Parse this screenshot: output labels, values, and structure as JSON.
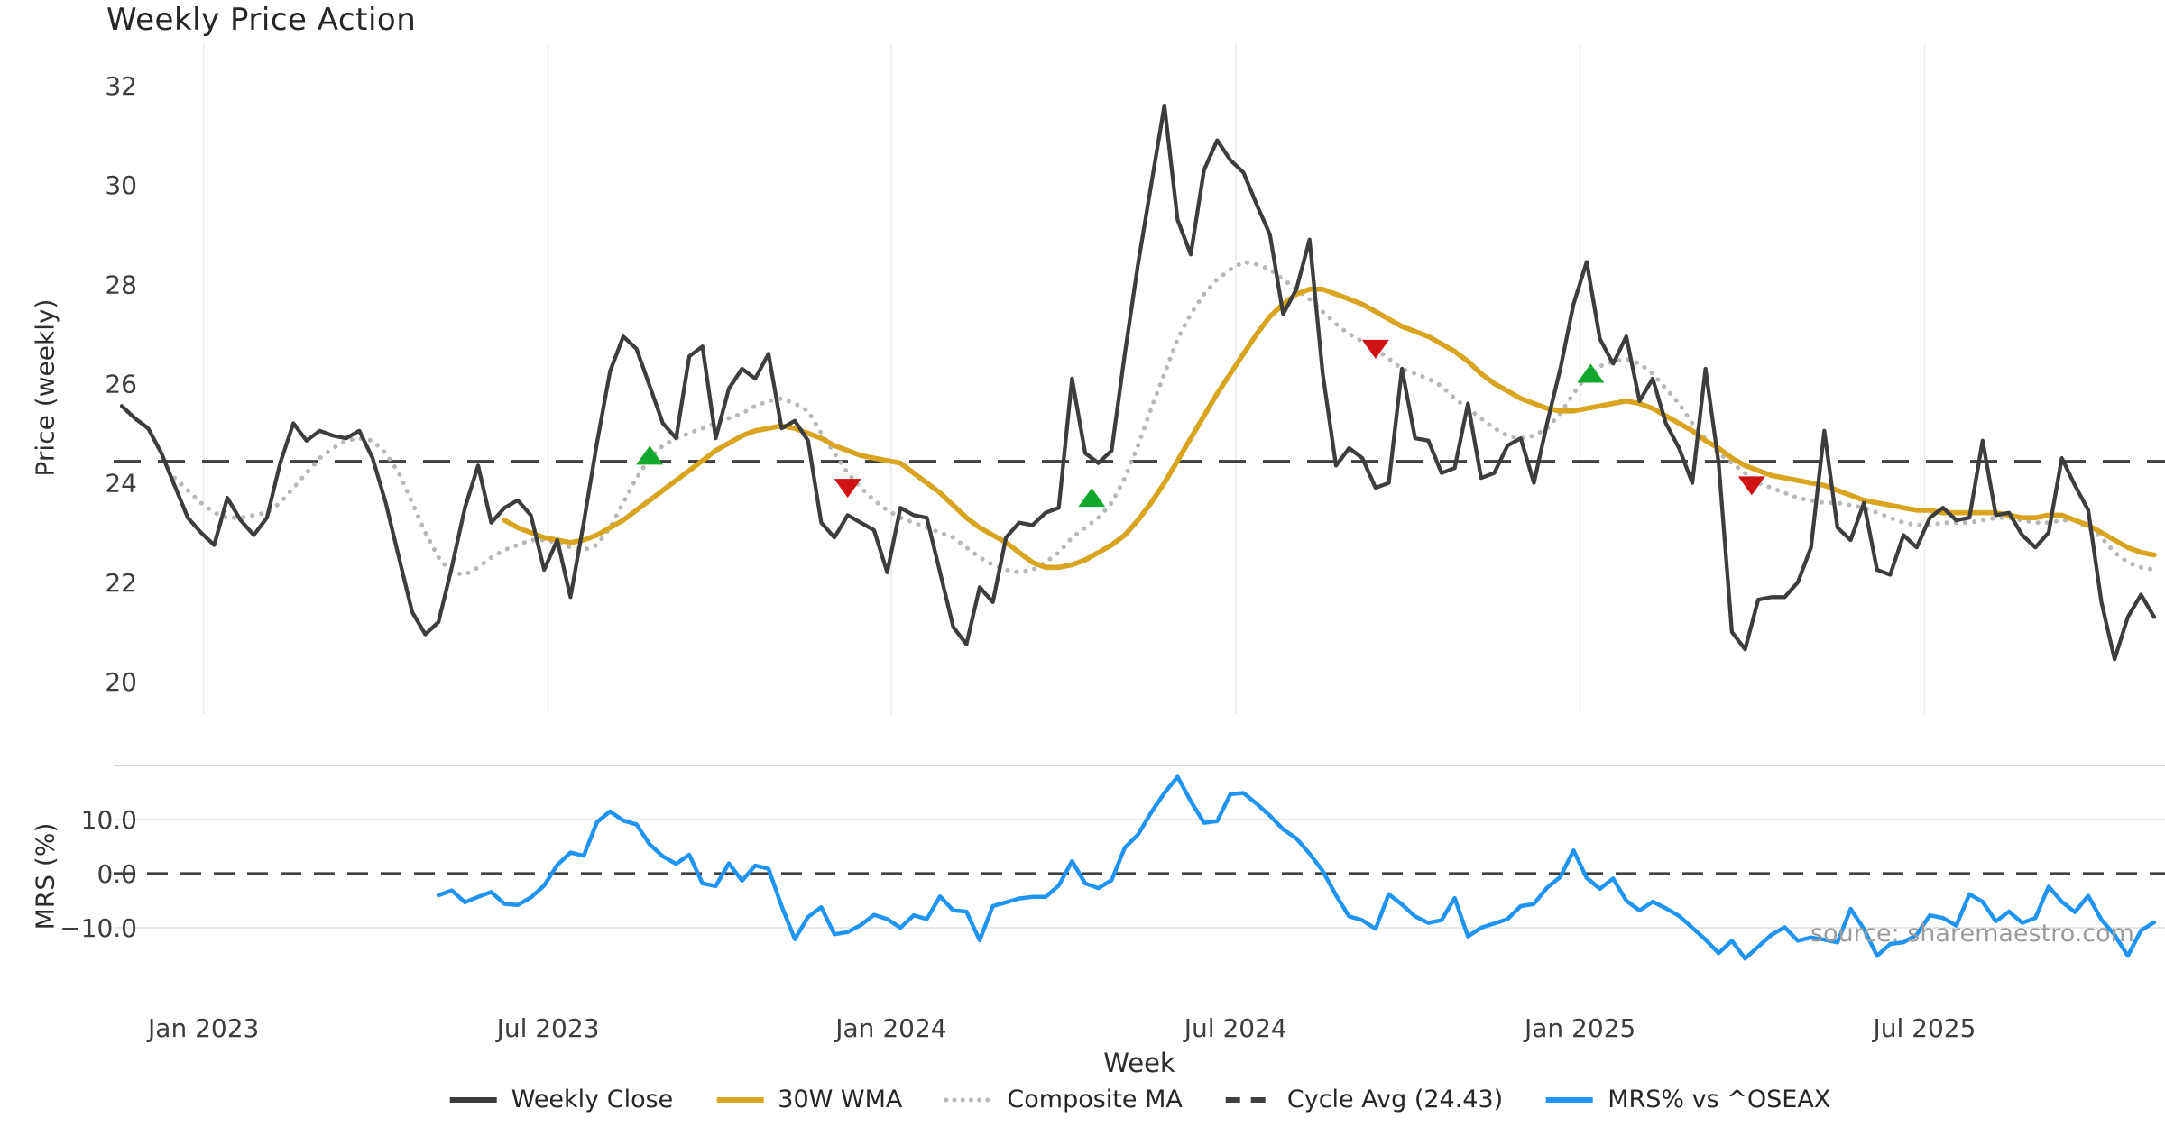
{
  "title": "Weekly Price Action",
  "source_note": "source: sharemaestro.com",
  "colors": {
    "close": "#3d3d3d",
    "wma": "#d9a521",
    "composite": "#b8b8b8",
    "cycle": "#3f3f3f",
    "mrs": "#2094f3",
    "buy": "#13a82d",
    "sell": "#cf1313",
    "grid": "#efefef",
    "panel_grid": "#e8e8e8",
    "panel_border": "#d8d8d8",
    "title_text": "#262626",
    "tick_text": "#3d3d3d",
    "source_text": "#9b9b9b"
  },
  "chart_data": {
    "type": "line",
    "title": "Weekly Price Action",
    "xlabel": "Week",
    "x_start_date": "2022-11-20",
    "x_step": "1 week",
    "x_ticks": [
      {
        "week": 6.2,
        "label": "Jan 2023"
      },
      {
        "week": 32.3,
        "label": "Jul 2023"
      },
      {
        "week": 58.3,
        "label": "Jan 2024"
      },
      {
        "week": 84.4,
        "label": "Jul 2024"
      },
      {
        "week": 110.5,
        "label": "Jan 2025"
      },
      {
        "week": 136.6,
        "label": "Jul 2025"
      }
    ],
    "top_panel": {
      "ylabel": "Price (weekly)",
      "ylim": [
        19.4,
        32.9
      ],
      "yticks": [
        20,
        22,
        24,
        26,
        28,
        30,
        32
      ],
      "cycle_avg": 24.43,
      "cycle_avg_label": "Cycle Avg (24.43)",
      "series": [
        {
          "name": "Weekly Close",
          "style": "solid",
          "color_key": "close",
          "start_week": 0,
          "values": [
            25.55,
            25.3,
            25.1,
            24.6,
            23.95,
            23.3,
            23.0,
            22.75,
            23.7,
            23.25,
            22.95,
            23.3,
            24.4,
            25.2,
            24.85,
            25.05,
            24.95,
            24.9,
            25.05,
            24.5,
            23.6,
            22.5,
            21.4,
            20.95,
            21.2,
            22.3,
            23.5,
            24.35,
            23.2,
            23.5,
            23.65,
            23.35,
            22.25,
            22.85,
            21.7,
            23.2,
            24.8,
            26.25,
            26.95,
            26.7,
            25.95,
            25.2,
            24.9,
            26.55,
            26.75,
            24.9,
            25.9,
            26.3,
            26.1,
            26.6,
            25.1,
            25.25,
            24.85,
            23.2,
            22.9,
            23.35,
            23.2,
            23.05,
            22.2,
            23.5,
            23.35,
            23.3,
            22.2,
            21.1,
            20.75,
            21.9,
            21.6,
            22.9,
            23.2,
            23.15,
            23.4,
            23.5,
            26.1,
            24.6,
            24.4,
            24.65,
            26.6,
            28.4,
            30.0,
            31.6,
            29.3,
            28.6,
            30.3,
            30.9,
            30.5,
            30.25,
            29.6,
            29.0,
            27.4,
            27.9,
            28.9,
            26.2,
            24.35,
            24.7,
            24.5,
            23.9,
            24.0,
            26.3,
            24.9,
            24.85,
            24.2,
            24.3,
            25.6,
            24.1,
            24.2,
            24.75,
            24.9,
            24.0,
            25.2,
            26.3,
            27.6,
            28.45,
            26.9,
            26.4,
            26.95,
            25.65,
            26.1,
            25.2,
            24.7,
            24.0,
            26.3,
            24.4,
            21.0,
            20.65,
            21.65,
            21.7,
            21.7,
            22.0,
            22.7,
            25.05,
            23.1,
            22.85,
            23.6,
            22.25,
            22.15,
            22.95,
            22.7,
            23.3,
            23.5,
            23.25,
            23.3,
            24.85,
            23.35,
            23.4,
            22.95,
            22.7,
            23.0,
            24.5,
            23.95,
            23.45,
            21.6,
            20.45,
            21.3,
            21.75,
            21.3
          ]
        },
        {
          "name": "30W WMA",
          "style": "solid",
          "color_key": "wma",
          "start_week": 29,
          "values": [
            23.25,
            23.1,
            23.0,
            22.9,
            22.85,
            22.8,
            22.85,
            22.95,
            23.1,
            23.25,
            23.45,
            23.65,
            23.85,
            24.05,
            24.25,
            24.45,
            24.65,
            24.8,
            24.95,
            25.05,
            25.1,
            25.15,
            25.1,
            25.0,
            24.9,
            24.75,
            24.65,
            24.55,
            24.5,
            24.45,
            24.4,
            24.2,
            24.0,
            23.8,
            23.55,
            23.3,
            23.1,
            22.95,
            22.8,
            22.6,
            22.4,
            22.3,
            22.3,
            22.35,
            22.45,
            22.6,
            22.75,
            22.95,
            23.25,
            23.6,
            24.0,
            24.45,
            24.9,
            25.35,
            25.8,
            26.2,
            26.6,
            27.0,
            27.35,
            27.6,
            27.8,
            27.9,
            27.9,
            27.8,
            27.7,
            27.6,
            27.45,
            27.3,
            27.15,
            27.05,
            26.95,
            26.8,
            26.65,
            26.45,
            26.2,
            26.0,
            25.85,
            25.7,
            25.6,
            25.5,
            25.45,
            25.45,
            25.5,
            25.55,
            25.6,
            25.65,
            25.6,
            25.5,
            25.35,
            25.2,
            25.05,
            24.85,
            24.7,
            24.5,
            24.35,
            24.25,
            24.15,
            24.1,
            24.05,
            24.0,
            23.95,
            23.85,
            23.75,
            23.65,
            23.6,
            23.55,
            23.5,
            23.45,
            23.45,
            23.4,
            23.4,
            23.4,
            23.4,
            23.4,
            23.35,
            23.3,
            23.3,
            23.35,
            23.35,
            23.25,
            23.15,
            23.0,
            22.85,
            22.7,
            22.6,
            22.55
          ]
        },
        {
          "name": "Composite MA",
          "style": "dotted",
          "color_key": "composite",
          "start_week": 4,
          "values": [
            24.1,
            23.85,
            23.6,
            23.4,
            23.3,
            23.3,
            23.35,
            23.4,
            23.6,
            23.9,
            24.2,
            24.5,
            24.7,
            24.85,
            24.9,
            24.85,
            24.6,
            24.2,
            23.6,
            23.0,
            22.5,
            22.2,
            22.15,
            22.3,
            22.5,
            22.65,
            22.75,
            22.85,
            22.85,
            22.8,
            22.7,
            22.65,
            22.75,
            23.1,
            23.6,
            24.1,
            24.5,
            24.75,
            24.9,
            25.0,
            25.1,
            25.2,
            25.3,
            25.4,
            25.55,
            25.65,
            25.7,
            25.6,
            25.45,
            25.0,
            24.6,
            24.2,
            23.9,
            23.65,
            23.45,
            23.3,
            23.2,
            23.1,
            23.0,
            22.9,
            22.7,
            22.5,
            22.35,
            22.25,
            22.2,
            22.25,
            22.4,
            22.6,
            22.9,
            23.1,
            23.3,
            23.6,
            24.1,
            24.75,
            25.5,
            26.2,
            26.9,
            27.4,
            27.8,
            28.1,
            28.3,
            28.45,
            28.4,
            28.3,
            28.1,
            27.9,
            27.7,
            27.45,
            27.2,
            27.0,
            26.85,
            26.7,
            26.5,
            26.3,
            26.2,
            26.1,
            25.95,
            25.7,
            25.5,
            25.3,
            25.1,
            24.95,
            24.9,
            24.95,
            25.1,
            25.4,
            25.8,
            26.15,
            26.35,
            26.45,
            26.5,
            26.4,
            26.2,
            25.9,
            25.6,
            25.2,
            24.9,
            24.6,
            24.4,
            24.2,
            24.0,
            23.9,
            23.8,
            23.7,
            23.65,
            23.6,
            23.6,
            23.55,
            23.5,
            23.4,
            23.3,
            23.2,
            23.15,
            23.15,
            23.2,
            23.2,
            23.2,
            23.25,
            23.3,
            23.3,
            23.25,
            23.2,
            23.2,
            23.25,
            23.25,
            23.1,
            22.9,
            22.6,
            22.4,
            22.3,
            22.25
          ]
        }
      ],
      "markers": {
        "buy": [
          {
            "week": 40,
            "price": 24.55
          },
          {
            "week": 73.5,
            "price": 23.7
          },
          {
            "week": 111.3,
            "price": 26.2
          }
        ],
        "sell": [
          {
            "week": 55,
            "price": 23.9
          },
          {
            "week": 95,
            "price": 26.7
          },
          {
            "week": 123.5,
            "price": 23.95
          }
        ]
      }
    },
    "bottom_panel": {
      "ylabel": "MRS (%)",
      "ylim": [
        -17.8,
        20
      ],
      "yticks": [
        -10,
        0,
        10
      ],
      "zero_line": 0,
      "series": [
        {
          "name": "MRS% vs ^OSEAX",
          "style": "solid",
          "color_key": "mrs",
          "start_week": 24,
          "values": [
            -4.0,
            -3.1,
            -5.3,
            -4.3,
            -3.4,
            -5.6,
            -5.8,
            -4.4,
            -2.2,
            1.6,
            3.9,
            3.3,
            9.5,
            11.5,
            9.8,
            9.1,
            5.4,
            3.2,
            1.8,
            3.5,
            -1.8,
            -2.3,
            1.9,
            -1.3,
            1.5,
            0.9,
            -6.0,
            -12.1,
            -8.0,
            -6.2,
            -11.2,
            -10.8,
            -9.5,
            -7.6,
            -8.4,
            -10.0,
            -7.7,
            -8.4,
            -4.2,
            -6.8,
            -7.0,
            -12.3,
            -6.0,
            -5.3,
            -4.6,
            -4.3,
            -4.3,
            -2.2,
            2.3,
            -1.8,
            -2.7,
            -1.2,
            4.8,
            7.2,
            11.3,
            14.9,
            17.9,
            13.4,
            9.4,
            9.7,
            14.7,
            14.9,
            12.9,
            10.7,
            8.2,
            6.5,
            3.7,
            0.5,
            -4.0,
            -7.9,
            -8.6,
            -10.2,
            -3.8,
            -5.7,
            -7.9,
            -9.1,
            -8.6,
            -4.5,
            -11.6,
            -10.0,
            -9.2,
            -8.4,
            -6.0,
            -5.6,
            -2.6,
            -0.6,
            4.3,
            -0.8,
            -2.8,
            -0.9,
            -5.0,
            -6.8,
            -5.2,
            -6.4,
            -7.8,
            -10.0,
            -12.2,
            -14.7,
            -12.4,
            -15.7,
            -13.5,
            -11.3,
            -9.9,
            -12.4,
            -11.8,
            -12.2,
            -12.7,
            -6.5,
            -10.2,
            -15.2,
            -13.0,
            -12.7,
            -11.3,
            -7.7,
            -8.2,
            -9.6,
            -3.8,
            -5.2,
            -8.8,
            -7.0,
            -9.1,
            -8.2,
            -2.4,
            -5.2,
            -7.1,
            -4.1,
            -8.5,
            -11.3,
            -15.2,
            -10.5,
            -9.0
          ]
        }
      ]
    },
    "legend": [
      {
        "label": "Weekly Close",
        "color_key": "close",
        "style": "solid"
      },
      {
        "label": "30W WMA",
        "color_key": "wma",
        "style": "solid"
      },
      {
        "label": "Composite MA",
        "color_key": "composite",
        "style": "dotted"
      },
      {
        "label": "Cycle Avg (24.43)",
        "color_key": "cycle",
        "style": "dashed"
      },
      {
        "label": "MRS% vs ^OSEAX",
        "color_key": "mrs",
        "style": "solid"
      }
    ]
  }
}
